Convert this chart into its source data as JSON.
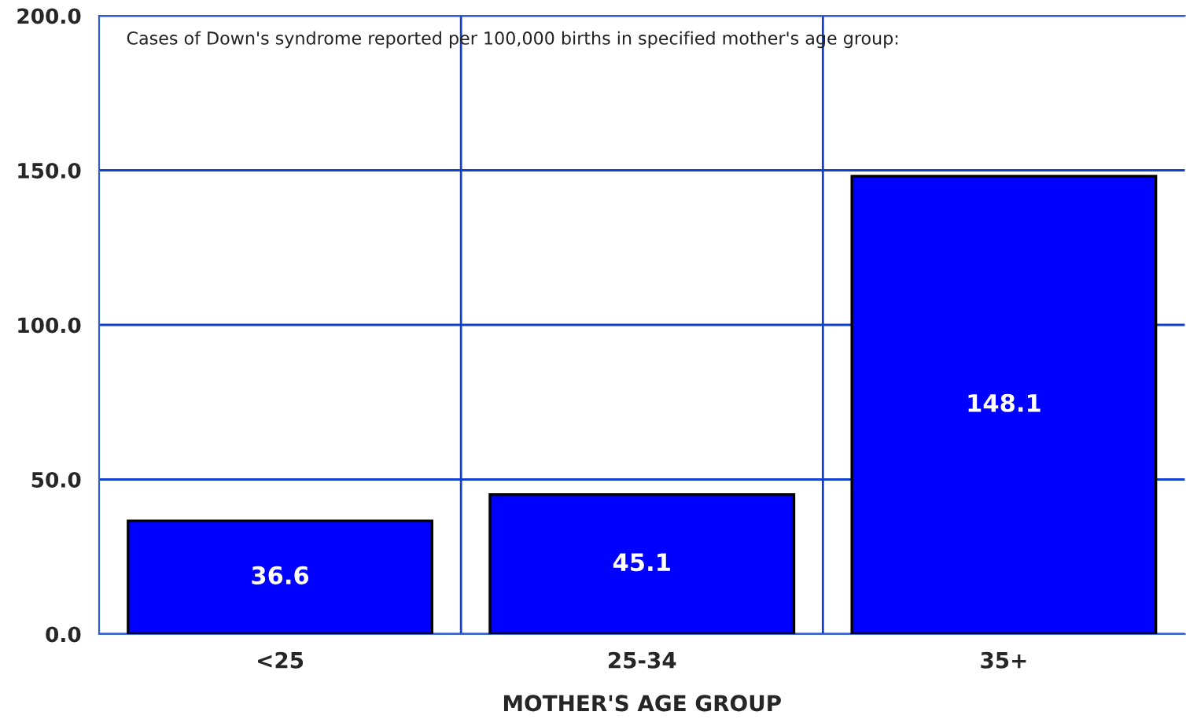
{
  "chart_data": {
    "type": "bar",
    "xlabel": "MOTHER'S AGE GROUP",
    "categories": [
      "<25",
      "25-34",
      "35+"
    ],
    "values": [
      36.6,
      45.1,
      148.1
    ],
    "color": "#0000ff",
    "ylim": [
      0,
      200
    ],
    "yticks": [
      {
        "value": 0,
        "label": "0.0"
      },
      {
        "value": 50,
        "label": "50.0"
      },
      {
        "value": 100,
        "label": "100.0"
      },
      {
        "value": 150,
        "label": "150.0"
      },
      {
        "value": 200,
        "label": "200.0"
      }
    ],
    "grid": true,
    "data_labels": true,
    "annotations": [
      "Cases of Down's syndrome reported per 100,000 births in specified mother's age group:"
    ]
  }
}
